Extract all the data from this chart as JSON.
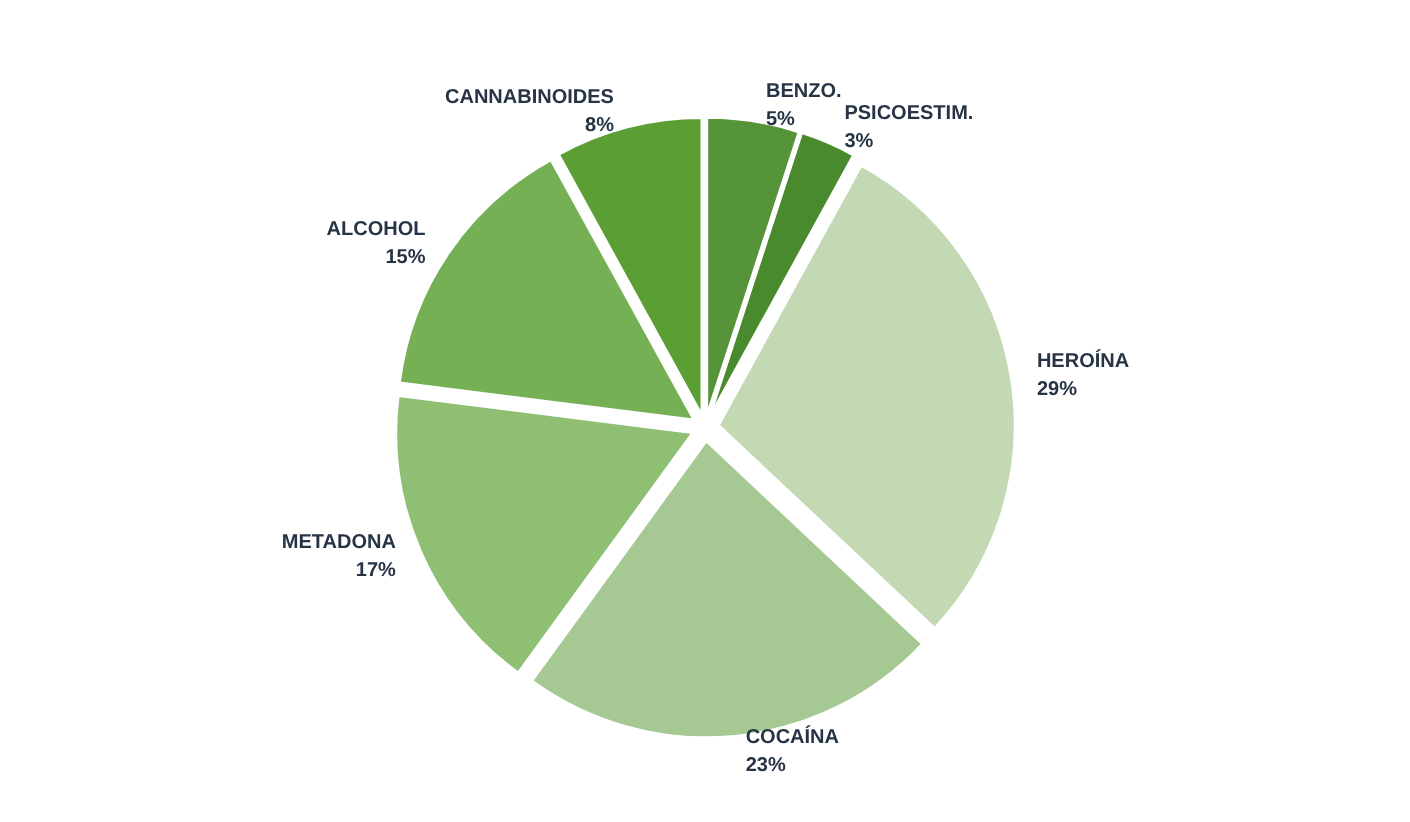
{
  "chart_data": {
    "type": "pie",
    "categories": [
      "BENZO.",
      "PSICOESTIM.",
      "HEROÍNA",
      "COCAÍNA",
      "METADONA",
      "ALCOHOL",
      "CANNABINOIDES"
    ],
    "values": [
      5,
      3,
      29,
      23,
      17,
      15,
      8
    ],
    "value_labels": [
      "5%",
      "3%",
      "29%",
      "23%",
      "17%",
      "15%",
      "8%"
    ],
    "colors": [
      "#559438",
      "#4a8a2e",
      "#c2d9b4",
      "#a6c994",
      "#8fbf72",
      "#76b055",
      "#5a9e34"
    ]
  }
}
